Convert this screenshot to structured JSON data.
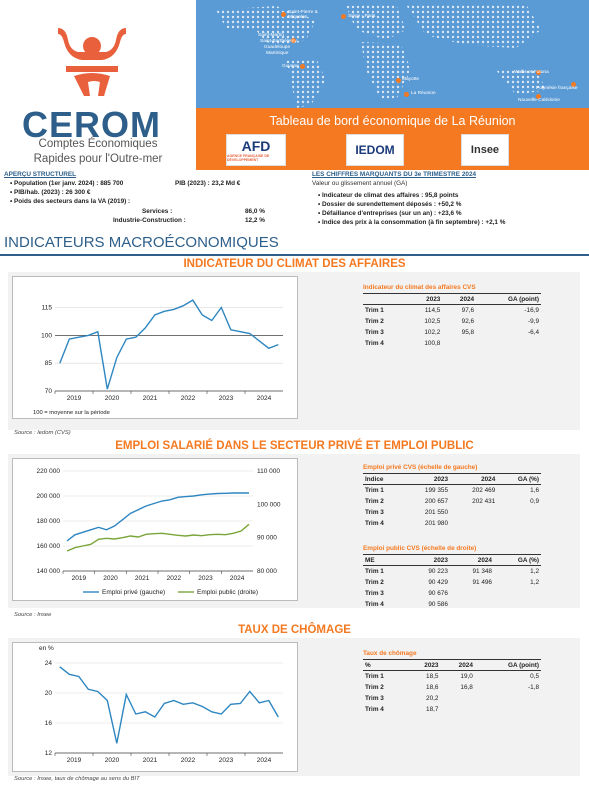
{
  "logo": {
    "name": "CEROM",
    "subtitle1": "Comptes Économiques",
    "subtitle2": "Rapides pour l'Outre-mer"
  },
  "map_labels": [
    "Saint-Pierre & Miquelon",
    "Siège - Paris",
    "Saint-Martin",
    "Saint-Barthélemy",
    "Guadeloupe",
    "Martinique",
    "Guyane",
    "Mayotte",
    "La Réunion",
    "Wallis-et-Futuna",
    "Polynésie française",
    "Nouvelle-Calédonie"
  ],
  "banner": {
    "title": "Tableau de bord économique de La Réunion",
    "partners": [
      "AFD",
      "IEDOM",
      "Insee"
    ],
    "afd_sub": "AGENCE FRANÇAISE DE DÉVELOPPEMENT"
  },
  "apercu": {
    "title": "APERÇU STRUCTUREL",
    "population": "Population (1er janv. 2024) : 885 700",
    "pib": "PIB (2023) : 23,2 Md €",
    "pibhab": "PIB/hab. (2023) : 26 300 €",
    "poids": "Poids des secteurs dans la VA (2019) :",
    "services_label": "Services :",
    "services_val": "86,0 %",
    "industrie_label": "Industrie-Construction :",
    "industrie_val": "12,2 %"
  },
  "chiffres": {
    "title": "LES CHIFFRES MARQUANTS DU 3e TRIMESTRE 2024",
    "subtitle": "Valeur ou glissement annuel (GA)",
    "items": [
      "Indicateur de climat des affaires : 95,8 points",
      "Dossier de surendettement déposés : +50,2 %",
      "Défaillance d'entreprises (sur un an) : +23,6 %",
      "Indice des prix à la consommation (à fin septembre) : +2,1 %"
    ]
  },
  "section_title": "INDICATEURS MACROÉCONOMIQUES",
  "climat": {
    "heading": "INDICATEUR DU CLIMAT DES AFFAIRES",
    "note": "100 = moyenne sur la période",
    "source": "Source : Iedom (CVS)",
    "table": {
      "title": "Indicateur du climat des affaires CVS",
      "cols": [
        "",
        "2023",
        "2024",
        "GA (point)"
      ],
      "rows": [
        [
          "Trim 1",
          "114,5",
          "97,6",
          "-16,9"
        ],
        [
          "Trim 2",
          "102,5",
          "92,6",
          "-9,9"
        ],
        [
          "Trim 3",
          "102,2",
          "95,8",
          "-6,4"
        ],
        [
          "Trim 4",
          "100,8",
          "",
          ""
        ]
      ]
    }
  },
  "emploi": {
    "heading": "EMPLOI SALARIÉ DANS LE SECTEUR PRIVÉ ET EMPLOI PUBLIC",
    "source": "Source : Insee",
    "table1": {
      "title": "Emploi privé CVS (échelle de gauche)",
      "cols": [
        "Indice",
        "2023",
        "2024",
        "GA (%)"
      ],
      "rows": [
        [
          "Trim 1",
          "199 355",
          "202 469",
          "1,6"
        ],
        [
          "Trim 2",
          "200 657",
          "202 431",
          "0,9"
        ],
        [
          "Trim 3",
          "201 550",
          "",
          ""
        ],
        [
          "Trim 4",
          "201 980",
          "",
          ""
        ]
      ]
    },
    "table2": {
      "title": "Emploi public CVS (échelle de droite)",
      "cols": [
        "ME",
        "2023",
        "2024",
        "GA (%)"
      ],
      "rows": [
        [
          "Trim 1",
          "90 223",
          "91 348",
          "1,2"
        ],
        [
          "Trim 2",
          "90 429",
          "91 496",
          "1,2"
        ],
        [
          "Trim 3",
          "90 676",
          "",
          ""
        ],
        [
          "Trim 4",
          "90 586",
          "",
          ""
        ]
      ]
    }
  },
  "chomage": {
    "heading": "TAUX DE CHÔMAGE",
    "unit": "en %",
    "source": "Source : Insee, taux de chômage au sens du BIT",
    "table": {
      "title": "Taux de chômage",
      "cols": [
        "%",
        "2023",
        "2024",
        "GA (point)"
      ],
      "rows": [
        [
          "Trim 1",
          "18,5",
          "19,0",
          "0,5"
        ],
        [
          "Trim 2",
          "18,6",
          "16,8",
          "-1,8"
        ],
        [
          "Trim 3",
          "20,2",
          "",
          ""
        ],
        [
          "Trim 4",
          "18,7",
          "",
          ""
        ]
      ]
    }
  },
  "chart_data": [
    {
      "type": "line",
      "title": "INDICATEUR DU CLIMAT DES AFFAIRES",
      "x_labels": [
        "2019",
        "2020",
        "2021",
        "2022",
        "2023",
        "2024"
      ],
      "ylim": [
        70,
        125
      ],
      "yticks": [
        70,
        85,
        100,
        115
      ],
      "color": "#2e86c1",
      "series": [
        {
          "values": [
            85,
            98,
            99,
            100,
            102,
            71,
            88,
            98,
            99,
            104,
            111,
            113,
            114,
            116,
            119,
            111,
            108,
            115,
            103,
            102,
            101,
            97,
            93,
            95
          ]
        }
      ]
    },
    {
      "type": "line",
      "title": "EMPLOI SALARIÉ DANS LE SECTEUR PRIVÉ ET EMPLOI PUBLIC",
      "x_labels": [
        "2019",
        "2020",
        "2021",
        "2022",
        "2023",
        "2024"
      ],
      "ylim": [
        140000,
        220000
      ],
      "yticks_left": [
        "140 000",
        "160 000",
        "180 000",
        "200 000",
        "220 000"
      ],
      "ylim_right": [
        80000,
        110000
      ],
      "yticks_right": [
        "80 000",
        "90 000",
        "100 000",
        "110 000"
      ],
      "series": [
        {
          "name": "Emploi privé (gauche)",
          "axis": "left",
          "color": "#2e86c1",
          "values": [
            164000,
            169000,
            171000,
            173000,
            175000,
            173000,
            176000,
            181000,
            186000,
            189000,
            192000,
            194000,
            196000,
            197000,
            199000,
            199500,
            200000,
            201000,
            201500,
            202000,
            202200,
            202400,
            202500,
            202400
          ]
        },
        {
          "name": "Emploi public (droite)",
          "axis": "right",
          "color": "#7aa53a",
          "values": [
            86000,
            87000,
            87500,
            88000,
            89500,
            89800,
            89600,
            90000,
            90500,
            90200,
            91000,
            91200,
            91300,
            91000,
            90700,
            90500,
            90800,
            90600,
            90900,
            91000,
            90900,
            91300,
            92000,
            94000
          ]
        }
      ]
    },
    {
      "type": "line",
      "title": "TAUX DE CHÔMAGE",
      "x_labels": [
        "2019",
        "2020",
        "2021",
        "2022",
        "2023",
        "2024"
      ],
      "ylim": [
        12,
        24
      ],
      "yticks": [
        12,
        16,
        20,
        24
      ],
      "color": "#2e86c1",
      "series": [
        {
          "values": [
            23.5,
            22.5,
            22.2,
            20.5,
            20.2,
            19.0,
            13.3,
            19.8,
            17.2,
            17.5,
            16.8,
            18.6,
            19.0,
            18.5,
            18.7,
            18.2,
            17.5,
            17.2,
            18.5,
            18.6,
            20.2,
            18.7,
            19.0,
            16.8
          ]
        }
      ]
    }
  ]
}
